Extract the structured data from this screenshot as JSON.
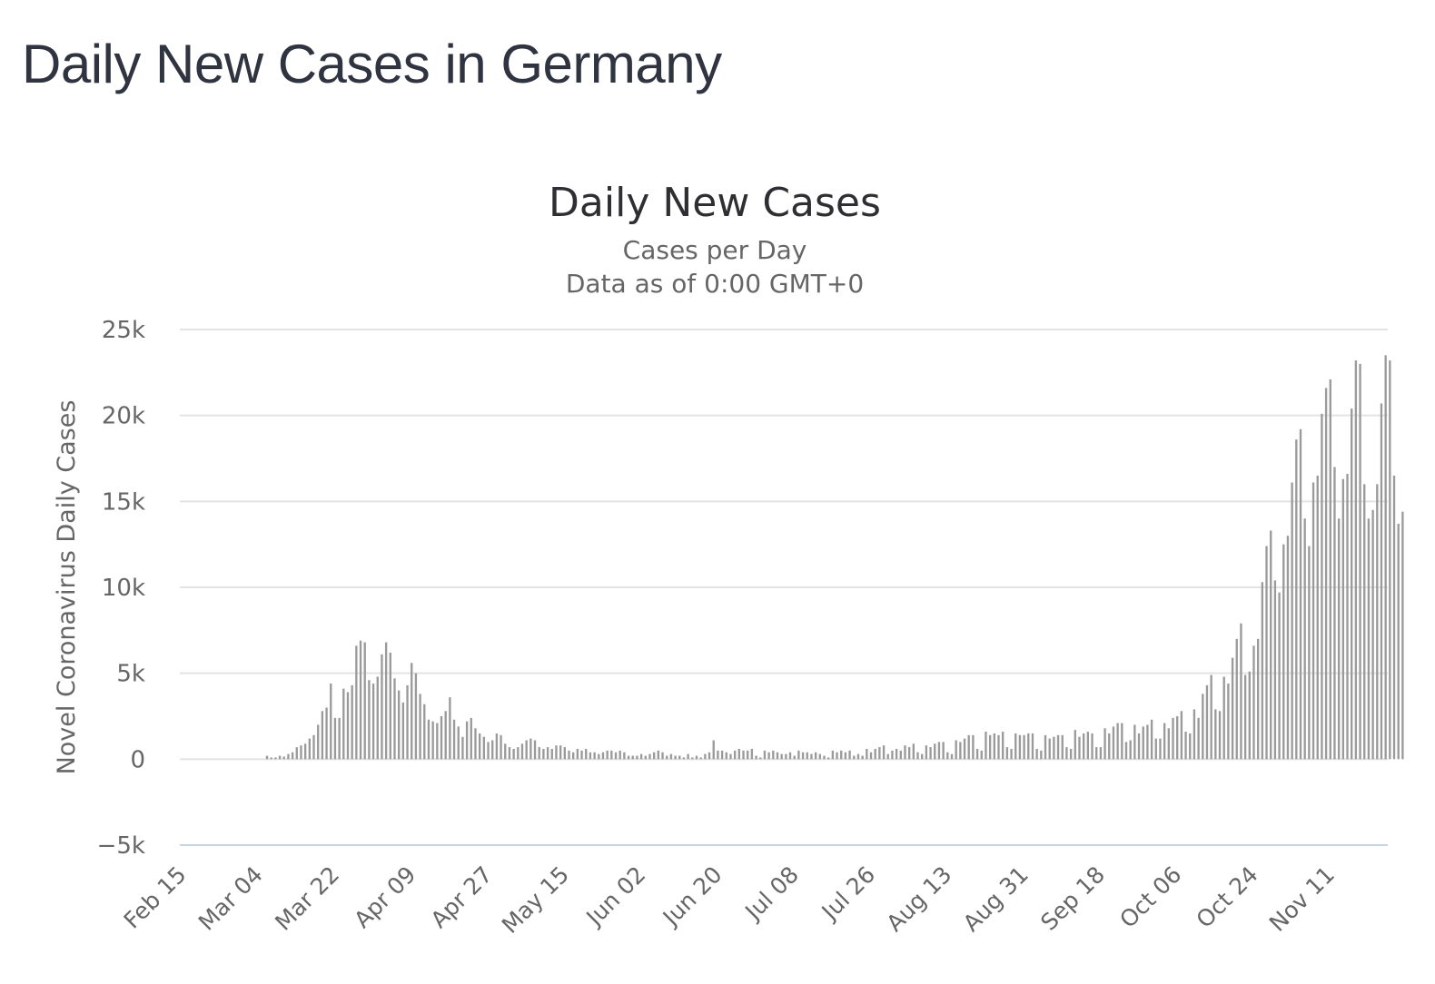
{
  "page": {
    "title": "Daily New Cases in Germany"
  },
  "colors": {
    "bar": "#9a9a9a",
    "title": "#2f3440"
  },
  "chart_data": {
    "type": "bar",
    "title": "Daily New Cases",
    "subtitle_lines": [
      "Cases per Day",
      "Data as of 0:00 GMT+0"
    ],
    "xlabel": "",
    "ylabel": "Novel Coronavirus Daily Cases",
    "ylim": [
      -5000,
      25000
    ],
    "yticks": [
      -5000,
      0,
      5000,
      10000,
      15000,
      20000,
      25000
    ],
    "ytick_labels": [
      "−5k",
      "0",
      "5k",
      "10k",
      "15k",
      "20k",
      "25k"
    ],
    "grid": true,
    "legend": "none",
    "start_date": "2020-02-15",
    "date_count": 284,
    "xtick_labels": [
      "Feb 15",
      "Mar 04",
      "Mar 22",
      "Apr 09",
      "Apr 27",
      "May 15",
      "Jun 02",
      "Jun 20",
      "Jul 08",
      "Jul 26",
      "Aug 13",
      "Aug 31",
      "Sep 18",
      "Oct 06",
      "Oct 24",
      "Nov 11"
    ],
    "xtick_day_index": [
      0,
      18,
      36,
      54,
      72,
      90,
      108,
      126,
      144,
      162,
      180,
      198,
      216,
      234,
      252,
      270
    ],
    "series": [
      {
        "name": "Daily Cases",
        "values": [
          0,
          0,
          0,
          0,
          0,
          0,
          0,
          0,
          0,
          0,
          0,
          0,
          0,
          0,
          0,
          0,
          0,
          0,
          0,
          0,
          200,
          100,
          100,
          200,
          150,
          300,
          400,
          700,
          800,
          900,
          1200,
          1400,
          2000,
          2800,
          3000,
          4400,
          2400,
          2400,
          4100,
          3900,
          4300,
          6600,
          6900,
          6800,
          4600,
          4400,
          4800,
          6100,
          6800,
          6200,
          4700,
          4000,
          3300,
          4300,
          5600,
          5000,
          3800,
          3200,
          2300,
          2200,
          2100,
          2500,
          2800,
          3600,
          2300,
          1900,
          1300,
          2200,
          2400,
          1800,
          1500,
          1300,
          1000,
          1100,
          1500,
          1400,
          900,
          700,
          600,
          700,
          900,
          1100,
          1200,
          1100,
          700,
          600,
          700,
          600,
          800,
          800,
          700,
          500,
          400,
          600,
          500,
          600,
          400,
          400,
          300,
          400,
          500,
          500,
          400,
          500,
          400,
          200,
          200,
          200,
          300,
          200,
          300,
          400,
          500,
          400,
          200,
          300,
          200,
          200,
          100,
          300,
          100,
          200,
          100,
          300,
          400,
          1100,
          500,
          500,
          400,
          300,
          500,
          600,
          500,
          500,
          600,
          200,
          100,
          500,
          400,
          500,
          400,
          300,
          300,
          400,
          200,
          500,
          400,
          400,
          300,
          400,
          300,
          200,
          100,
          500,
          400,
          500,
          400,
          500,
          200,
          300,
          200,
          600,
          400,
          600,
          700,
          800,
          300,
          500,
          600,
          500,
          800,
          700,
          900,
          400,
          300,
          800,
          700,
          900,
          1000,
          1000,
          400,
          300,
          1100,
          1000,
          1200,
          1400,
          1400,
          600,
          500,
          1600,
          1400,
          1500,
          1400,
          1600,
          700,
          600,
          1500,
          1400,
          1400,
          1500,
          1500,
          600,
          500,
          1400,
          1200,
          1300,
          1400,
          1400,
          700,
          600,
          1700,
          1300,
          1500,
          1600,
          1500,
          700,
          700,
          1800,
          1500,
          1900,
          2100,
          2100,
          1000,
          1100,
          2000,
          1500,
          1900,
          2000,
          2300,
          1200,
          1200,
          2100,
          1800,
          2400,
          2500,
          2800,
          1600,
          1500,
          2900,
          2400,
          3800,
          4300,
          4900,
          2900,
          2800,
          4800,
          4400,
          5900,
          7000,
          7900,
          4900,
          5100,
          6600,
          7000,
          10300,
          12400,
          13300,
          10400,
          9700,
          12500,
          13000,
          16100,
          18600,
          19200,
          14000,
          12400,
          16100,
          16500,
          20100,
          21600,
          22100,
          17000,
          14000,
          16300,
          16600,
          20400,
          23200,
          23000,
          16000,
          14000,
          14500,
          16000,
          20700,
          23500,
          23200,
          16500,
          13700,
          14400
        ]
      }
    ]
  }
}
